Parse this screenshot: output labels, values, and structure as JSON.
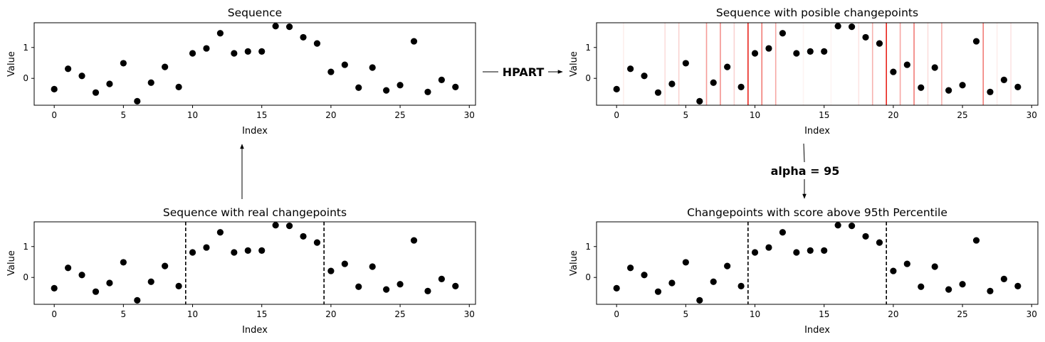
{
  "chart_data": [
    {
      "id": "seq",
      "type": "scatter",
      "title": "Sequence",
      "xlabel": "Index",
      "ylabel": "Value",
      "xlim": [
        -1.45,
        30.45
      ],
      "ylim": [
        -0.87,
        1.8
      ],
      "xticks": [
        0,
        5,
        10,
        15,
        20,
        25,
        30
      ],
      "yticks": [
        0,
        1
      ],
      "x": [
        0,
        1,
        2,
        3,
        4,
        5,
        6,
        7,
        8,
        9,
        10,
        11,
        12,
        13,
        14,
        15,
        16,
        17,
        18,
        19,
        20,
        21,
        22,
        23,
        24,
        25,
        26,
        27,
        28,
        29
      ],
      "y": [
        -0.35,
        0.31,
        0.08,
        -0.46,
        -0.18,
        0.49,
        -0.74,
        -0.14,
        0.37,
        -0.28,
        0.81,
        0.97,
        1.46,
        0.81,
        0.87,
        0.87,
        1.69,
        1.67,
        1.33,
        1.13,
        0.21,
        0.44,
        -0.3,
        0.35,
        -0.39,
        -0.22,
        1.2,
        -0.44,
        -0.05,
        -0.28
      ],
      "point_color": "#000000",
      "changepoints": [],
      "changepoint_style": "none"
    },
    {
      "id": "hpart",
      "type": "scatter",
      "title": "Sequence with posible changepoints",
      "xlabel": "Index",
      "ylabel": "Value",
      "xlim": [
        -1.45,
        30.45
      ],
      "ylim": [
        -0.87,
        1.8
      ],
      "xticks": [
        0,
        5,
        10,
        15,
        20,
        25,
        30
      ],
      "yticks": [
        0,
        1
      ],
      "x": [
        0,
        1,
        2,
        3,
        4,
        5,
        6,
        7,
        8,
        9,
        10,
        11,
        12,
        13,
        14,
        15,
        16,
        17,
        18,
        19,
        20,
        21,
        22,
        23,
        24,
        25,
        26,
        27,
        28,
        29
      ],
      "y": [
        -0.35,
        0.31,
        0.08,
        -0.46,
        -0.18,
        0.49,
        -0.74,
        -0.14,
        0.37,
        -0.28,
        0.81,
        0.97,
        1.46,
        0.81,
        0.87,
        0.87,
        1.69,
        1.67,
        1.33,
        1.13,
        0.21,
        0.44,
        -0.3,
        0.35,
        -0.39,
        -0.22,
        1.2,
        -0.44,
        -0.05,
        -0.28
      ],
      "point_color": "#000000",
      "changepoint_style": "scored",
      "changepoint_color": "#e8231b",
      "scored_changepoints": [
        {
          "x": 0.5,
          "score": 0.08
        },
        {
          "x": 3.5,
          "score": 0.15
        },
        {
          "x": 4.5,
          "score": 0.2
        },
        {
          "x": 6.5,
          "score": 0.45
        },
        {
          "x": 7.5,
          "score": 0.5
        },
        {
          "x": 8.5,
          "score": 0.2
        },
        {
          "x": 9.5,
          "score": 1.0
        },
        {
          "x": 10.5,
          "score": 0.6
        },
        {
          "x": 11.5,
          "score": 0.4
        },
        {
          "x": 13.5,
          "score": 0.05
        },
        {
          "x": 15.5,
          "score": 0.05
        },
        {
          "x": 17.5,
          "score": 0.12
        },
        {
          "x": 18.5,
          "score": 0.35
        },
        {
          "x": 19.5,
          "score": 1.0
        },
        {
          "x": 20.5,
          "score": 0.4
        },
        {
          "x": 21.5,
          "score": 0.6
        },
        {
          "x": 22.5,
          "score": 0.15
        },
        {
          "x": 23.5,
          "score": 0.35
        },
        {
          "x": 26.5,
          "score": 0.6
        },
        {
          "x": 27.5,
          "score": 0.08
        },
        {
          "x": 28.5,
          "score": 0.12
        }
      ]
    },
    {
      "id": "real",
      "type": "scatter",
      "title": "Sequence with real changepoints",
      "xlabel": "Index",
      "ylabel": "Value",
      "xlim": [
        -1.45,
        30.45
      ],
      "ylim": [
        -0.87,
        1.8
      ],
      "xticks": [
        0,
        5,
        10,
        15,
        20,
        25,
        30
      ],
      "yticks": [
        0,
        1
      ],
      "x": [
        0,
        1,
        2,
        3,
        4,
        5,
        6,
        7,
        8,
        9,
        10,
        11,
        12,
        13,
        14,
        15,
        16,
        17,
        18,
        19,
        20,
        21,
        22,
        23,
        24,
        25,
        26,
        27,
        28,
        29
      ],
      "y": [
        -0.35,
        0.31,
        0.08,
        -0.46,
        -0.18,
        0.49,
        -0.74,
        -0.14,
        0.37,
        -0.28,
        0.81,
        0.97,
        1.46,
        0.81,
        0.87,
        0.87,
        1.69,
        1.67,
        1.33,
        1.13,
        0.21,
        0.44,
        -0.3,
        0.35,
        -0.39,
        -0.22,
        1.2,
        -0.44,
        -0.05,
        -0.28
      ],
      "point_color": "#000000",
      "changepoints": [
        9.5,
        19.5
      ],
      "changepoint_style": "dashed",
      "changepoint_color": "#000000"
    },
    {
      "id": "filtered",
      "type": "scatter",
      "title": "Changepoints with score above 95th Percentile",
      "xlabel": "Index",
      "ylabel": "Value",
      "xlim": [
        -1.45,
        30.45
      ],
      "ylim": [
        -0.87,
        1.8
      ],
      "xticks": [
        0,
        5,
        10,
        15,
        20,
        25,
        30
      ],
      "yticks": [
        0,
        1
      ],
      "x": [
        0,
        1,
        2,
        3,
        4,
        5,
        6,
        7,
        8,
        9,
        10,
        11,
        12,
        13,
        14,
        15,
        16,
        17,
        18,
        19,
        20,
        21,
        22,
        23,
        24,
        25,
        26,
        27,
        28,
        29
      ],
      "y": [
        -0.35,
        0.31,
        0.08,
        -0.46,
        -0.18,
        0.49,
        -0.74,
        -0.14,
        0.37,
        -0.28,
        0.81,
        0.97,
        1.46,
        0.81,
        0.87,
        0.87,
        1.69,
        1.67,
        1.33,
        1.13,
        0.21,
        0.44,
        -0.3,
        0.35,
        -0.39,
        -0.22,
        1.2,
        -0.44,
        -0.05,
        -0.28
      ],
      "point_color": "#000000",
      "changepoints": [
        9.5,
        19.5
      ],
      "changepoint_style": "dashed",
      "changepoint_color": "#000000"
    }
  ],
  "flow": {
    "hpart_label": "HPART",
    "alpha_label": "alpha = 95"
  }
}
